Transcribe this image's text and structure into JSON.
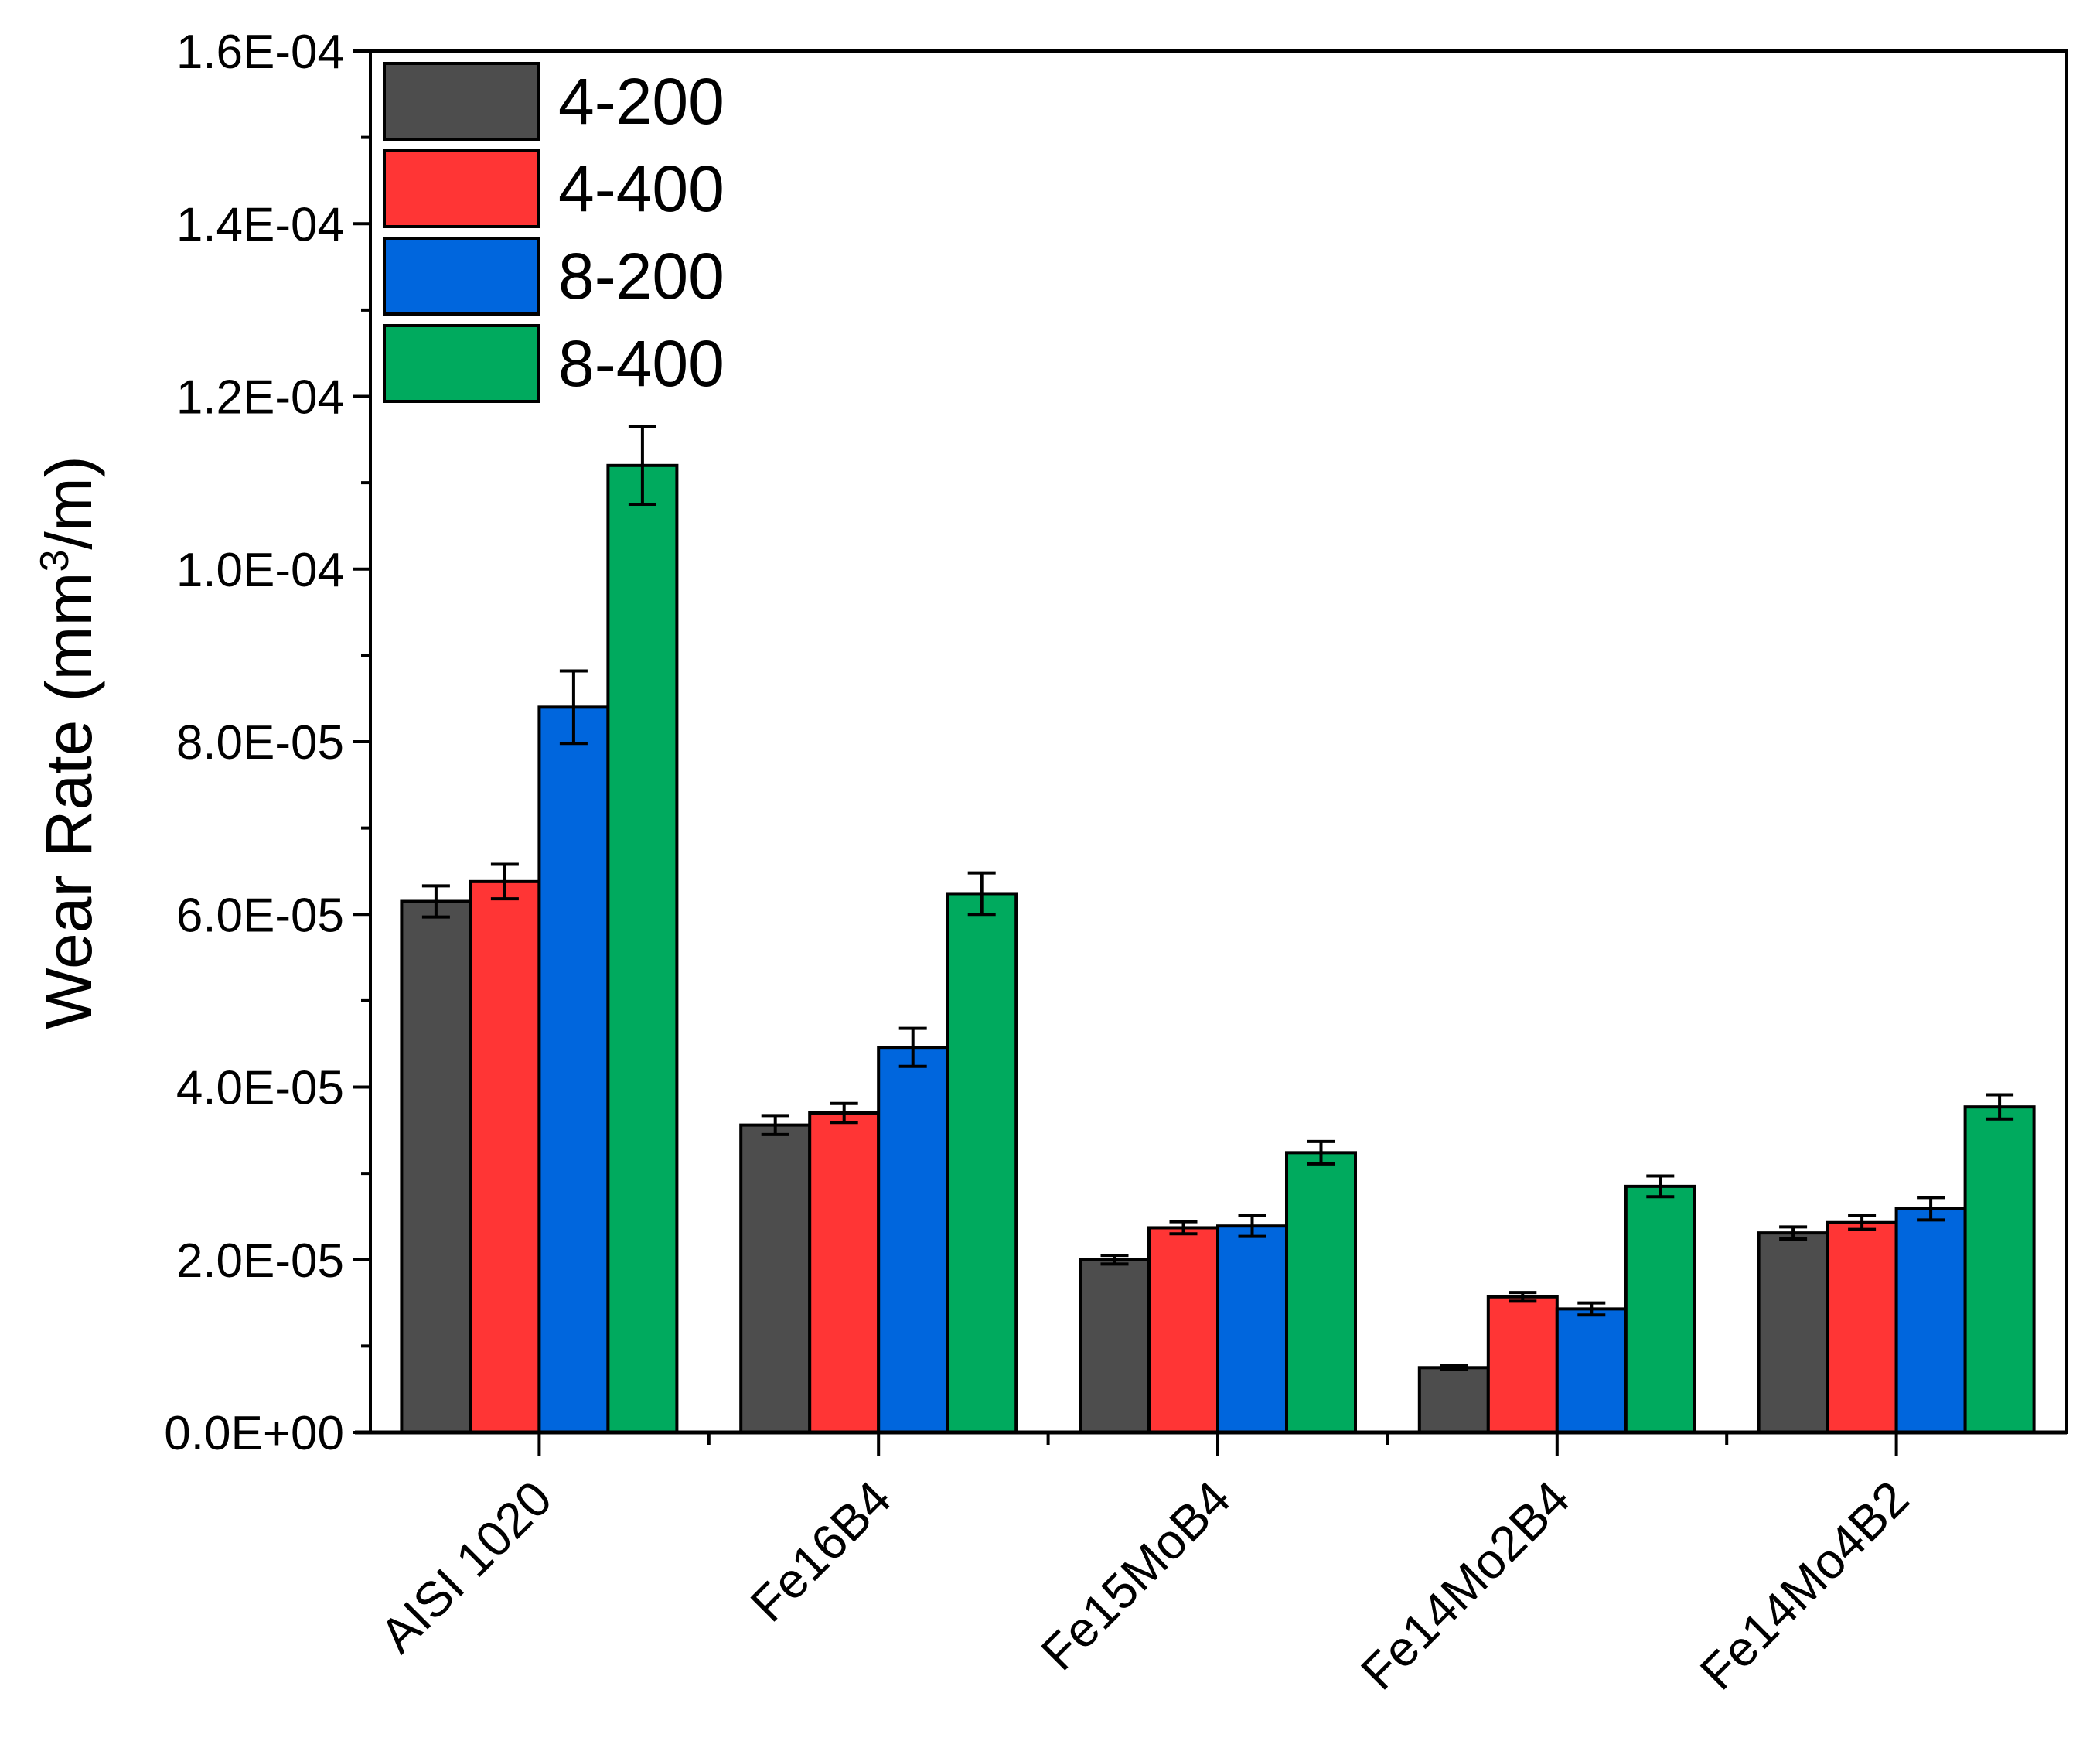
{
  "chart_data": {
    "type": "bar",
    "title": "",
    "xlabel": "",
    "ylabel": "Wear Rate (mm³/m)",
    "ylabel_parts": {
      "main": "Wear Rate (mm",
      "sup": "3",
      "tail": "/m)"
    },
    "ylim": [
      0,
      0.00016
    ],
    "yticks": [
      0,
      2e-05,
      4e-05,
      6e-05,
      8e-05,
      0.0001,
      0.00012,
      0.00014,
      0.00016
    ],
    "ytick_labels": [
      "0.0E+00",
      "2.0E-05",
      "4.0E-05",
      "6.0E-05",
      "8.0E-05",
      "1.0E-04",
      "1.2E-04",
      "1.4E-04",
      "1.6E-04"
    ],
    "categories": [
      "AISI 1020",
      "Fe16B4",
      "Fe15MoB4",
      "Fe14Mo2B4",
      "Fe14Mo4B2"
    ],
    "legend_position": "top-left",
    "grid": false,
    "series": [
      {
        "name": "4-200",
        "color": "#4d4d4d",
        "values": [
          6.15e-05,
          3.56e-05,
          2e-05,
          7.5e-06,
          2.31e-05
        ],
        "errors": [
          1.8e-06,
          1.1e-06,
          5e-07,
          2e-07,
          7e-07
        ]
      },
      {
        "name": "4-400",
        "color": "#ff3535",
        "values": [
          6.38e-05,
          3.7e-05,
          2.37e-05,
          1.57e-05,
          2.43e-05
        ],
        "errors": [
          2e-06,
          1.1e-06,
          7e-07,
          5e-07,
          8e-07
        ]
      },
      {
        "name": "8-200",
        "color": "#0066dd",
        "values": [
          8.4e-05,
          4.46e-05,
          2.39e-05,
          1.43e-05,
          2.59e-05
        ],
        "errors": [
          4.2e-06,
          2.2e-06,
          1.2e-06,
          7e-07,
          1.3e-06
        ]
      },
      {
        "name": "8-400",
        "color": "#00aa5e",
        "values": [
          0.000112,
          6.24e-05,
          3.24e-05,
          2.85e-05,
          3.77e-05
        ],
        "errors": [
          4.5e-06,
          2.4e-06,
          1.3e-06,
          1.2e-06,
          1.4e-06
        ]
      }
    ]
  }
}
